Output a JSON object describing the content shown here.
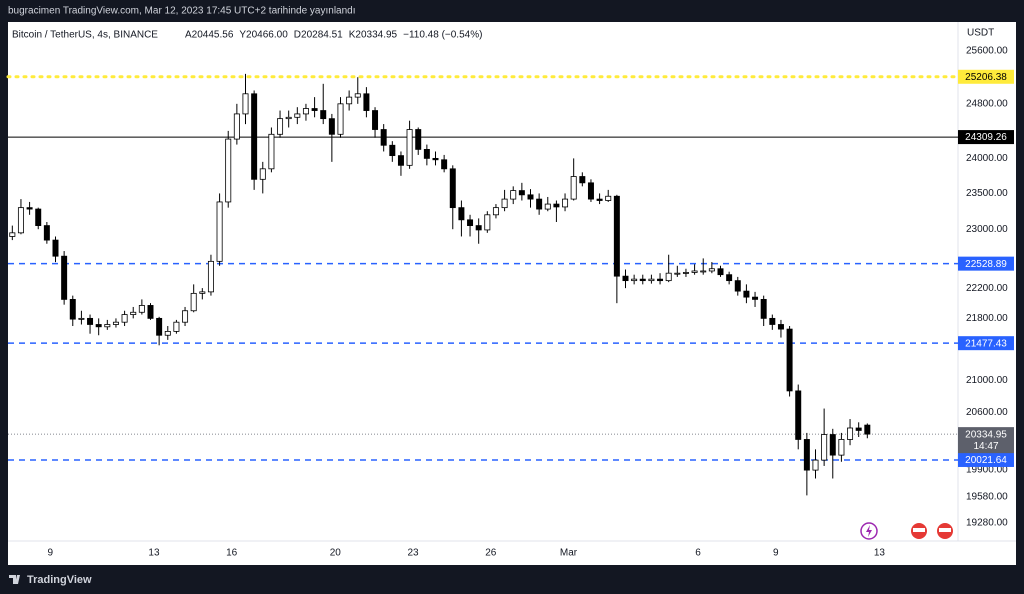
{
  "header": "bugracimen TradingView.com, Mar 12, 2023 17:45 UTC+2 tarihinde yayınlandı",
  "footer_logo": "TradingView",
  "chart_data": {
    "type": "candlestick",
    "symbol": "Bitcoin / TetherUS, 4s, BINANCE",
    "legend_values": [
      "A20445.56",
      "Y20466.00",
      "D20284.51",
      "K20334.95",
      "−110.48 (−0.54%)"
    ],
    "currency": "USDT",
    "log_scale": true,
    "grid": false,
    "ylim": [
      19070,
      26050
    ],
    "yticks": [
      {
        "value": 25600,
        "label": "25600.00"
      },
      {
        "value": 24800,
        "label": "24800.00"
      },
      {
        "value": 24000,
        "label": "24000.00"
      },
      {
        "value": 23500,
        "label": "23500.00"
      },
      {
        "value": 23000,
        "label": "23000.00"
      },
      {
        "value": 22200,
        "label": "22200.00"
      },
      {
        "value": 21800,
        "label": "21800.00"
      },
      {
        "value": 21000,
        "label": "21000.00"
      },
      {
        "value": 20600,
        "label": "20600.00"
      },
      {
        "value": 19900,
        "label": "19900.00"
      },
      {
        "value": 19580,
        "label": "19580.00"
      },
      {
        "value": 19280,
        "label": "19280.00"
      }
    ],
    "xlim": [
      0,
      110
    ],
    "xticks": [
      {
        "value": 4.9,
        "label": "9"
      },
      {
        "value": 16.9,
        "label": "13"
      },
      {
        "value": 25.9,
        "label": "16"
      },
      {
        "value": 37.9,
        "label": "20"
      },
      {
        "value": 46.9,
        "label": "23"
      },
      {
        "value": 55.9,
        "label": "26"
      },
      {
        "value": 64.9,
        "label": "Mar"
      },
      {
        "value": 79.9,
        "label": "6"
      },
      {
        "value": 88.9,
        "label": "9"
      },
      {
        "value": 100.9,
        "label": "13"
      }
    ],
    "up_color": "#ffffff",
    "down_color": "#000000",
    "candles": [
      [
        22900,
        23050,
        22850,
        22950
      ],
      [
        22950,
        23420,
        22930,
        23300
      ],
      [
        23300,
        23380,
        23200,
        23280
      ],
      [
        23280,
        23300,
        23000,
        23050
      ],
      [
        23050,
        23100,
        22800,
        22850
      ],
      [
        22850,
        22900,
        22550,
        22630
      ],
      [
        22630,
        22700,
        21980,
        22050
      ],
      [
        22050,
        22100,
        21700,
        21790
      ],
      [
        21790,
        21900,
        21720,
        21800
      ],
      [
        21800,
        21850,
        21600,
        21720
      ],
      [
        21720,
        21800,
        21580,
        21690
      ],
      [
        21690,
        21780,
        21650,
        21720
      ],
      [
        21720,
        21800,
        21680,
        21750
      ],
      [
        21750,
        21900,
        21700,
        21850
      ],
      [
        21850,
        21950,
        21800,
        21880
      ],
      [
        21880,
        22050,
        21850,
        21970
      ],
      [
        21970,
        22000,
        21780,
        21800
      ],
      [
        21800,
        21820,
        21450,
        21580
      ],
      [
        21580,
        21700,
        21520,
        21630
      ],
      [
        21630,
        21780,
        21600,
        21750
      ],
      [
        21750,
        21950,
        21700,
        21900
      ],
      [
        21900,
        22250,
        21880,
        22130
      ],
      [
        22130,
        22200,
        22050,
        22150
      ],
      [
        22150,
        22650,
        22100,
        22560
      ],
      [
        22560,
        23500,
        22500,
        23380
      ],
      [
        23380,
        24400,
        23300,
        24280
      ],
      [
        24280,
        24800,
        24200,
        24650
      ],
      [
        24650,
        25250,
        24500,
        24950
      ],
      [
        24950,
        25000,
        23550,
        23700
      ],
      [
        23700,
        23950,
        23500,
        23850
      ],
      [
        23850,
        24450,
        23800,
        24350
      ],
      [
        24350,
        24700,
        24300,
        24580
      ],
      [
        24580,
        24700,
        24450,
        24600
      ],
      [
        24600,
        24750,
        24500,
        24650
      ],
      [
        24650,
        24800,
        24550,
        24730
      ],
      [
        24730,
        24900,
        24600,
        24700
      ],
      [
        24700,
        25100,
        24500,
        24580
      ],
      [
        24580,
        24650,
        23950,
        24350
      ],
      [
        24350,
        24900,
        24300,
        24800
      ],
      [
        24800,
        25000,
        24700,
        24900
      ],
      [
        24900,
        25200,
        24800,
        24950
      ],
      [
        24950,
        25050,
        24600,
        24700
      ],
      [
        24700,
        24750,
        24300,
        24420
      ],
      [
        24420,
        24500,
        24100,
        24190
      ],
      [
        24190,
        24250,
        23950,
        24040
      ],
      [
        24040,
        24100,
        23750,
        23900
      ],
      [
        23900,
        24550,
        23850,
        24420
      ],
      [
        24420,
        24450,
        24050,
        24130
      ],
      [
        24130,
        24200,
        23900,
        24000
      ],
      [
        24000,
        24100,
        23900,
        23980
      ],
      [
        23980,
        24050,
        23800,
        23850
      ],
      [
        23850,
        23900,
        23000,
        23300
      ],
      [
        23300,
        23400,
        22900,
        23130
      ],
      [
        23130,
        23200,
        22900,
        23050
      ],
      [
        23050,
        23150,
        22800,
        22990
      ],
      [
        22990,
        23250,
        22950,
        23200
      ],
      [
        23200,
        23350,
        23150,
        23300
      ],
      [
        23300,
        23550,
        23250,
        23420
      ],
      [
        23420,
        23600,
        23350,
        23540
      ],
      [
        23540,
        23650,
        23400,
        23480
      ],
      [
        23480,
        23560,
        23300,
        23420
      ],
      [
        23420,
        23500,
        23200,
        23280
      ],
      [
        23280,
        23450,
        23250,
        23350
      ],
      [
        23350,
        23400,
        23100,
        23310
      ],
      [
        23310,
        23500,
        23250,
        23420
      ],
      [
        23420,
        24000,
        23400,
        23740
      ],
      [
        23740,
        23800,
        23600,
        23650
      ],
      [
        23650,
        23700,
        23380,
        23420
      ],
      [
        23420,
        23500,
        23350,
        23400
      ],
      [
        23400,
        23550,
        23380,
        23460
      ],
      [
        23460,
        23480,
        22000,
        22360
      ],
      [
        22360,
        22450,
        22200,
        22300
      ],
      [
        22300,
        22380,
        22250,
        22320
      ],
      [
        22320,
        22380,
        22250,
        22300
      ],
      [
        22300,
        22380,
        22260,
        22320
      ],
      [
        22320,
        22400,
        22250,
        22300
      ],
      [
        22300,
        22650,
        22280,
        22400
      ],
      [
        22400,
        22500,
        22350,
        22400
      ],
      [
        22400,
        22460,
        22350,
        22410
      ],
      [
        22410,
        22520,
        22380,
        22430
      ],
      [
        22430,
        22600,
        22380,
        22430
      ],
      [
        22430,
        22550,
        22400,
        22460
      ],
      [
        22460,
        22500,
        22350,
        22380
      ],
      [
        22380,
        22420,
        22250,
        22300
      ],
      [
        22300,
        22350,
        22100,
        22160
      ],
      [
        22160,
        22250,
        22000,
        22080
      ],
      [
        22080,
        22150,
        21950,
        22050
      ],
      [
        22050,
        22100,
        21700,
        21800
      ],
      [
        21800,
        21850,
        21650,
        21720
      ],
      [
        21720,
        21780,
        21550,
        21660
      ],
      [
        21660,
        21700,
        20800,
        20870
      ],
      [
        20870,
        20950,
        20150,
        20270
      ],
      [
        20270,
        20350,
        19600,
        19900
      ],
      [
        19900,
        20150,
        19800,
        20020
      ],
      [
        20020,
        20650,
        19950,
        20330
      ],
      [
        20330,
        20400,
        19800,
        20080
      ],
      [
        20080,
        20350,
        20000,
        20270
      ],
      [
        20270,
        20520,
        20200,
        20410
      ],
      [
        20410,
        20480,
        20300,
        20380
      ],
      [
        20445.56,
        20466,
        20284.51,
        20334.95
      ]
    ],
    "levels": [
      {
        "value": 25206.38,
        "color": "#ffeb3b",
        "text_color": "#000000",
        "style": "dotted"
      },
      {
        "value": 24309.26,
        "color": "#000000",
        "text_color": "#ffffff",
        "style": "solid"
      },
      {
        "value": 22528.89,
        "color": "#2962ff",
        "text_color": "#ffffff",
        "style": "dashed"
      },
      {
        "value": 21477.43,
        "color": "#2962ff",
        "text_color": "#ffffff",
        "style": "dashed"
      },
      {
        "value": 20021.64,
        "color": "#2962ff",
        "text_color": "#ffffff",
        "style": "dashed"
      }
    ],
    "last_price": {
      "value": 20334.95,
      "countdown": "14:47",
      "color": "#5d606b"
    }
  }
}
